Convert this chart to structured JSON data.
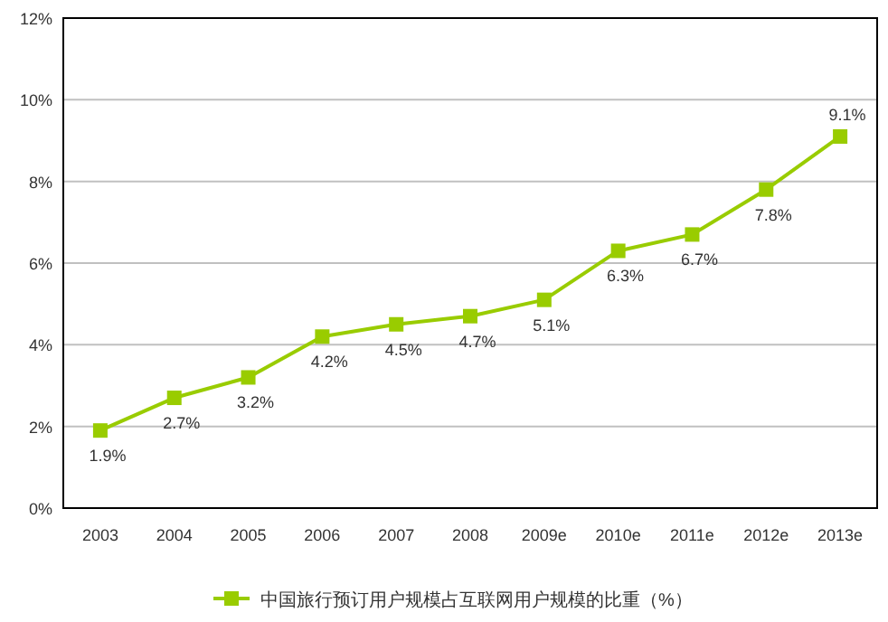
{
  "chart_data": {
    "type": "line",
    "categories": [
      "2003",
      "2004",
      "2005",
      "2006",
      "2007",
      "2008",
      "2009e",
      "2010e",
      "2011e",
      "2012e",
      "2013e"
    ],
    "series": [
      {
        "name": "中国旅行预订用户规模占互联网用户规模的比重（%）",
        "color": "#99cc00",
        "values": [
          1.9,
          2.7,
          3.2,
          4.2,
          4.5,
          4.7,
          5.1,
          6.3,
          6.7,
          7.8,
          9.1
        ],
        "value_labels": [
          "1.9%",
          "2.7%",
          "3.2%",
          "4.2%",
          "4.5%",
          "4.7%",
          "5.1%",
          "6.3%",
          "6.7%",
          "7.8%",
          "9.1%"
        ]
      }
    ],
    "ylim": [
      0,
      12
    ],
    "yticks": [
      {
        "value": 0,
        "label": "0%"
      },
      {
        "value": 2,
        "label": "2%"
      },
      {
        "value": 4,
        "label": "4%"
      },
      {
        "value": 6,
        "label": "6%"
      },
      {
        "value": 8,
        "label": "8%"
      },
      {
        "value": 10,
        "label": "10%"
      },
      {
        "value": 12,
        "label": "12%"
      }
    ],
    "grid": "y",
    "legend": "bottom",
    "marker": "square",
    "line_style": "solid"
  }
}
